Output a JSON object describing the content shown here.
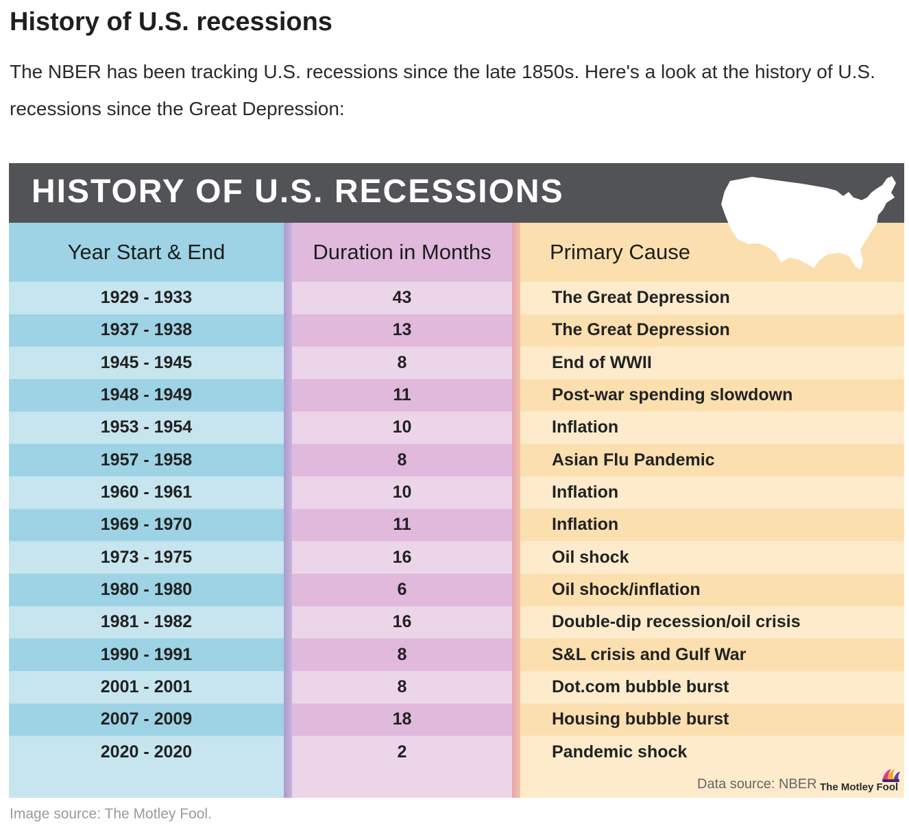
{
  "article": {
    "heading": "History of U.S. recessions",
    "intro": "The NBER has been tracking U.S. recessions since the late 1850s. Here's a look at the history of U.S. recessions since the Great Depression:",
    "caption": "Image source: The Motley Fool."
  },
  "colors": {
    "banner": "#525356",
    "year_col_dark": "#9dd3e4",
    "year_col_light": "#c6e5ef",
    "duration_col_dark": "#e0b9dd",
    "duration_col_light": "#ecd5e9",
    "cause_col_dark": "#fbdfaf",
    "cause_col_light": "#fdebcc"
  },
  "chart_data": {
    "type": "table",
    "title": "HISTORY OF U.S. RECESSIONS",
    "columns": [
      "Year Start & End",
      "Duration in Months",
      "Primary Cause"
    ],
    "rows": [
      {
        "years": "1929 - 1933",
        "duration": "43",
        "cause": "The Great Depression"
      },
      {
        "years": "1937 - 1938",
        "duration": "13",
        "cause": "The Great Depression"
      },
      {
        "years": "1945 - 1945",
        "duration": "8",
        "cause": "End of WWII"
      },
      {
        "years": "1948 - 1949",
        "duration": "11",
        "cause": "Post-war spending slowdown"
      },
      {
        "years": "1953 - 1954",
        "duration": "10",
        "cause": "Inflation"
      },
      {
        "years": "1957 - 1958",
        "duration": "8",
        "cause": "Asian Flu Pandemic"
      },
      {
        "years": "1960 - 1961",
        "duration": "10",
        "cause": "Inflation"
      },
      {
        "years": "1969 - 1970",
        "duration": "11",
        "cause": "Inflation"
      },
      {
        "years": "1973 - 1975",
        "duration": "16",
        "cause": "Oil shock"
      },
      {
        "years": "1980 - 1980",
        "duration": "6",
        "cause": "Oil shock/inflation"
      },
      {
        "years": "1981 - 1982",
        "duration": "16",
        "cause": "Double-dip recession/oil crisis"
      },
      {
        "years": "1990 - 1991",
        "duration": "8",
        "cause": "S&L crisis and Gulf War"
      },
      {
        "years": "2001 - 2001",
        "duration": "8",
        "cause": "Dot.com bubble burst"
      },
      {
        "years": "2007 - 2009",
        "duration": "18",
        "cause": "Housing bubble burst"
      },
      {
        "years": "2020 - 2020",
        "duration": "2",
        "cause": "Pandemic shock"
      }
    ],
    "source": "Data source: NBER",
    "brand": "The Motley Fool"
  }
}
